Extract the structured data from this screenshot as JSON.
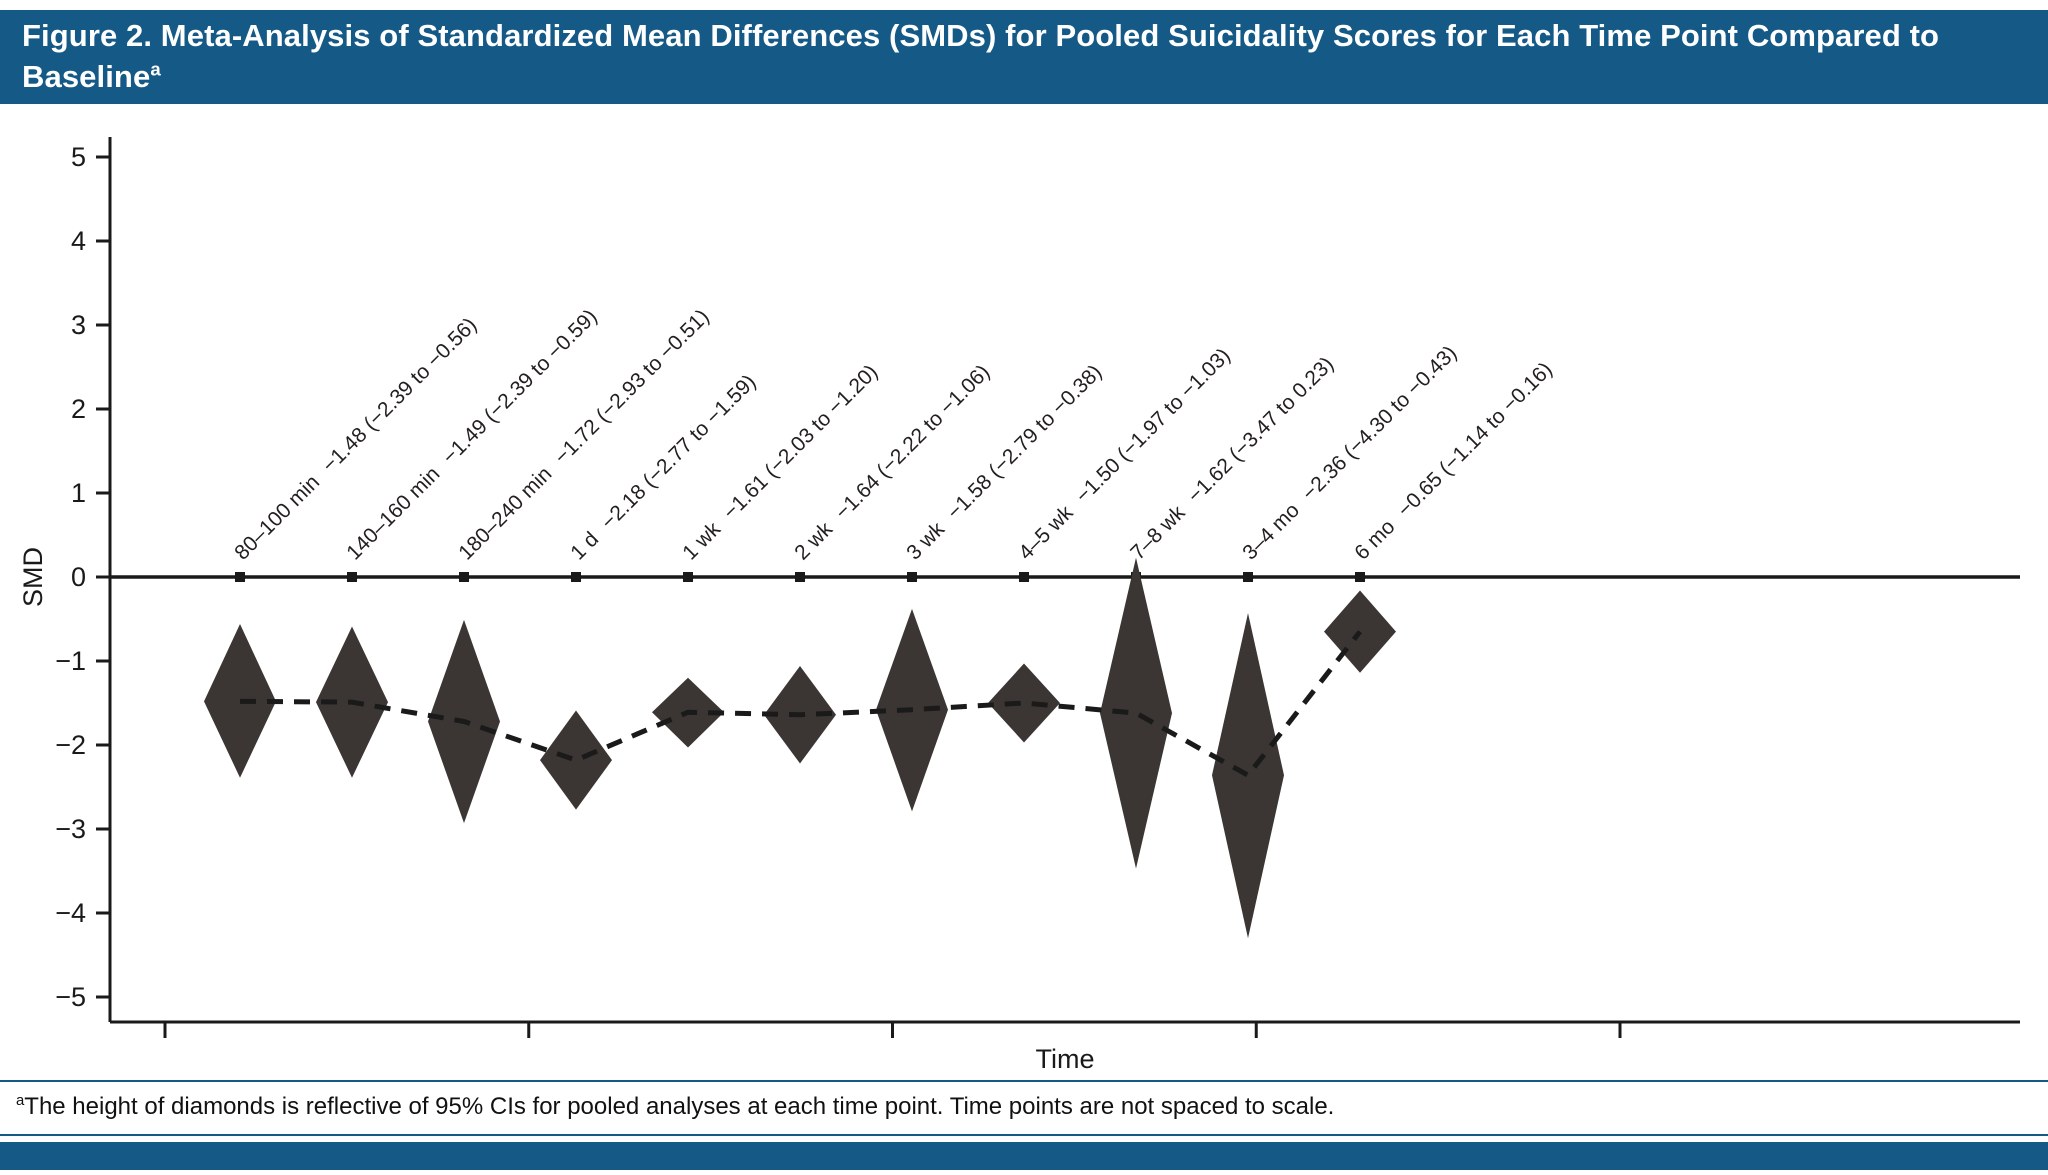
{
  "header": {
    "title": "Figure 2. Meta-Analysis of Standardized Mean Differences (SMDs) for Pooled Suicidality Scores for Each Time Point Compared to Baseline",
    "superscript": "a"
  },
  "chart_data": {
    "type": "line",
    "variant": "meta-analysis-diamond-forest",
    "title": "Figure 2. Meta-Analysis of Standardized Mean Differences (SMDs) for Pooled Suicidality Scores for Each Time Point Compared to Baseline",
    "xlabel": "Time",
    "ylabel": "SMD",
    "ylim": [
      -5,
      5
    ],
    "yticks": [
      5,
      4,
      3,
      2,
      1,
      0,
      -1,
      -2,
      -3,
      -4,
      -5
    ],
    "grid": false,
    "legend": false,
    "zero_reference_line": 0,
    "note": "Time points are not spaced to scale",
    "points": [
      {
        "time": "80–100 min",
        "smd": -1.48,
        "ci_low": -2.39,
        "ci_high": -0.56,
        "stats": "−1.48 (−2.39 to −0.56)"
      },
      {
        "time": "140–160 min",
        "smd": -1.49,
        "ci_low": -2.39,
        "ci_high": -0.59,
        "stats": "−1.49 (−2.39 to −0.59)"
      },
      {
        "time": "180–240 min",
        "smd": -1.72,
        "ci_low": -2.93,
        "ci_high": -0.51,
        "stats": "−1.72 (−2.93 to −0.51)"
      },
      {
        "time": "1 d",
        "smd": -2.18,
        "ci_low": -2.77,
        "ci_high": -1.59,
        "stats": "−2.18 (−2.77 to −1.59)"
      },
      {
        "time": "1 wk",
        "smd": -1.61,
        "ci_low": -2.03,
        "ci_high": -1.2,
        "stats": "−1.61 (−2.03 to −1.20)"
      },
      {
        "time": "2 wk",
        "smd": -1.64,
        "ci_low": -2.22,
        "ci_high": -1.06,
        "stats": "−1.64 (−2.22 to −1.06)"
      },
      {
        "time": "3 wk",
        "smd": -1.58,
        "ci_low": -2.79,
        "ci_high": -0.38,
        "stats": "−1.58 (−2.79 to −0.38)"
      },
      {
        "time": "4–5 wk",
        "smd": -1.5,
        "ci_low": -1.97,
        "ci_high": -1.03,
        "stats": "−1.50 (−1.97 to −1.03)"
      },
      {
        "time": "7–8 wk",
        "smd": -1.62,
        "ci_low": -3.47,
        "ci_high": 0.23,
        "stats": "−1.62 (−3.47 to 0.23)"
      },
      {
        "time": "3–4 mo",
        "smd": -2.36,
        "ci_low": -4.3,
        "ci_high": -0.43,
        "stats": "−2.36 (−4.30 to −0.43)"
      },
      {
        "time": "6 mo",
        "smd": -0.65,
        "ci_low": -1.14,
        "ci_high": -0.16,
        "stats": "−0.65 (−1.14 to −0.16)"
      }
    ]
  },
  "footnote": {
    "marker": "a",
    "text": "The height of diamonds is reflective of 95% CIs for pooled analyses at each time point. Time points are not spaced to scale."
  },
  "colors": {
    "accent_blue": "#155987",
    "diamond": "#3B3633",
    "ink": "#1A1A1A"
  }
}
